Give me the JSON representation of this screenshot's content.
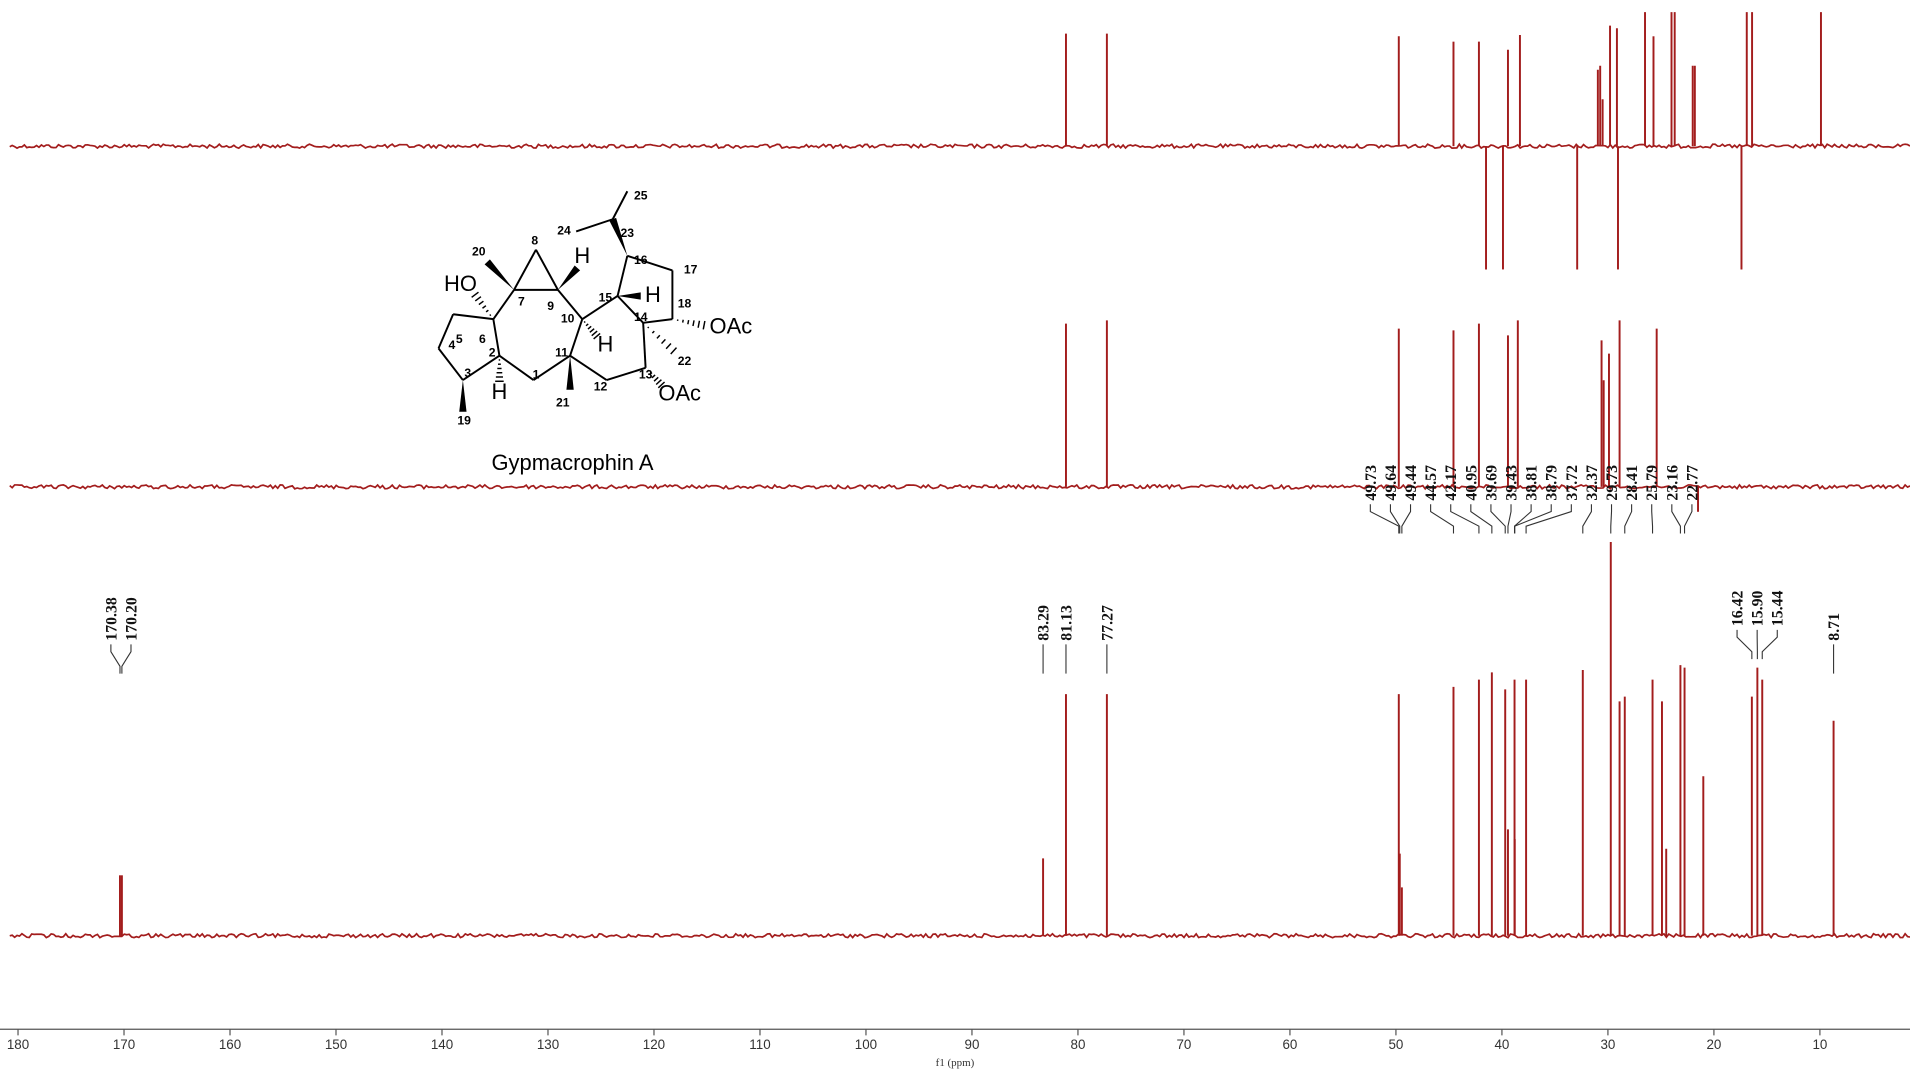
{
  "chart_data": [
    {
      "type": "spectrum",
      "color": "#a31d1d",
      "xlim": [
        181.7,
        1.5
      ],
      "ylim": [
        -100,
        100
      ],
      "x": [
        81.13,
        77.27,
        49.73,
        44.57,
        42.17,
        41.5,
        39.9,
        39.43,
        38.3,
        32.9,
        30.95,
        30.73,
        30.5,
        29.8,
        29.15,
        29.05,
        26.5,
        25.7,
        24.0,
        23.7,
        22.0,
        21.8,
        17.4,
        16.9,
        16.4,
        9.9
      ],
      "values": [
        84,
        84,
        82,
        78,
        78,
        -92,
        -92,
        72,
        83,
        -92,
        57,
        60,
        35,
        90,
        88,
        -92,
        100,
        82,
        100,
        100,
        60,
        60,
        -92,
        100,
        100,
        100
      ]
    },
    {
      "type": "spectrum",
      "color": "#a31d1d",
      "xlim": [
        181.7,
        1.5
      ],
      "ylim": [
        -20,
        100
      ],
      "x": [
        81.13,
        77.27,
        49.73,
        44.57,
        42.17,
        39.43,
        38.5,
        30.6,
        30.4,
        29.9,
        28.9,
        25.4,
        21.5
      ],
      "values": [
        98,
        100,
        95,
        94,
        98,
        91,
        100,
        88,
        64,
        80,
        100,
        95,
        -15
      ]
    },
    {
      "type": "spectrum",
      "color": "#a31d1d",
      "xlim": [
        181.7,
        1.5
      ],
      "ylim": [
        -10,
        165
      ],
      "xticks": [
        180,
        170,
        160,
        150,
        140,
        130,
        120,
        110,
        100,
        90,
        80,
        70,
        60,
        50,
        40,
        30,
        20,
        10
      ],
      "xlabel": "f1 (ppm)",
      "x": [
        170.38,
        170.2,
        83.29,
        81.13,
        77.27,
        49.73,
        49.64,
        49.44,
        44.57,
        42.17,
        40.95,
        39.69,
        39.43,
        38.81,
        38.79,
        37.72,
        32.37,
        29.73,
        28.9,
        28.41,
        25.79,
        24.9,
        24.5,
        23.16,
        22.77,
        21.0,
        16.42,
        15.9,
        15.44,
        8.71
      ],
      "x_labels": [
        "170.38",
        "170.20",
        "83.29",
        "81.13",
        "77.27",
        "49.73",
        "49.64",
        "49.44",
        "44.57",
        "42.17",
        "40.95",
        "39.69",
        "39.43",
        "38.81",
        "38.79",
        "37.72",
        "32.37",
        "29.73",
        null,
        "28.41",
        "25.79",
        null,
        null,
        "23.16",
        "22.77",
        null,
        "16.42",
        "15.90",
        "15.44",
        "8.71"
      ],
      "values": [
        25,
        25,
        32,
        100,
        100,
        100,
        34,
        20,
        103,
        106,
        109,
        102,
        44,
        106,
        40,
        106,
        110,
        163,
        97,
        99,
        106,
        97,
        36,
        112,
        111,
        66,
        99,
        111,
        106,
        89
      ]
    }
  ],
  "structure": {
    "caption": "Gypmacrophin A",
    "labels": [
      "20",
      "8",
      "HO",
      "7",
      "9",
      "H",
      "6",
      "5",
      "4",
      "3",
      "2",
      "H",
      "19",
      "1",
      "11",
      "21",
      "10",
      "H",
      "12",
      "13",
      "OAc",
      "14",
      "22",
      "15",
      "H",
      "16",
      "17",
      "18",
      "OAc",
      "23",
      "24",
      "25"
    ]
  }
}
